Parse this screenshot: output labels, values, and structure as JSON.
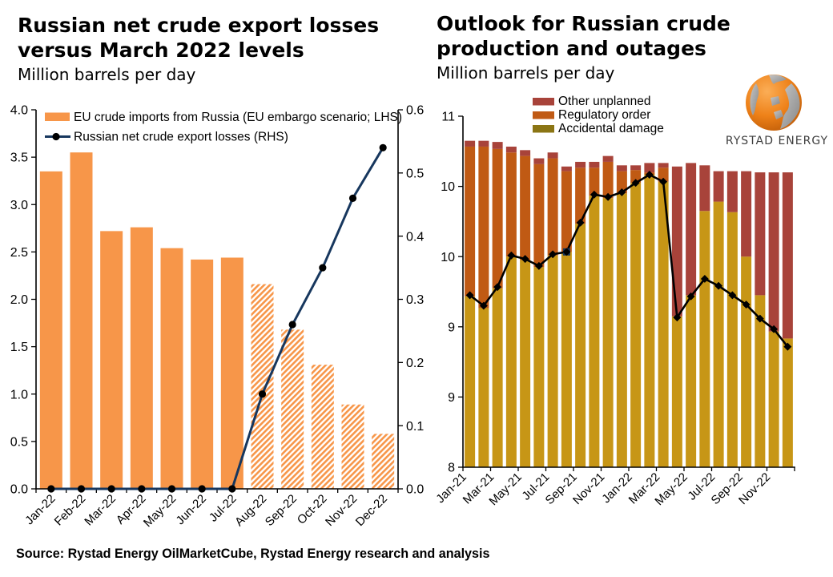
{
  "branding": {
    "logo_text": "RYSTAD ENERGY"
  },
  "footer": {
    "source_note": "Source: Rystad Energy OilMarketCube, Rystad Energy research and analysis"
  },
  "chart_data": [
    {
      "type": "bar+line",
      "title_line1": "Russian net crude export losses",
      "title_line2": "versus March 2022 levels",
      "subtitle": "Million barrels per day",
      "categories": [
        "Jan-22",
        "Feb-22",
        "Mar-22",
        "Apr-22",
        "May-22",
        "Jun-22",
        "Jul-22",
        "Aug-22",
        "Sep-22",
        "Oct-22",
        "Nov-22",
        "Dec-22"
      ],
      "series": [
        {
          "name": "EU crude imports from Russia (EU embargo scenario; LHS)",
          "type": "bar",
          "axis": "LHS",
          "color": "#F79649",
          "values": [
            3.35,
            3.55,
            2.72,
            2.76,
            2.54,
            2.42,
            2.44,
            2.16,
            1.68,
            1.31,
            0.89,
            0.58
          ],
          "hatched_from": "Aug-22"
        },
        {
          "name": "Russian net crude export losses (RHS)",
          "type": "line",
          "axis": "RHS",
          "color": "#17375E",
          "marker_color": "#000000",
          "values": [
            0,
            0,
            0,
            0,
            0,
            0,
            0,
            0.15,
            0.26,
            0.35,
            0.46,
            0.54
          ]
        }
      ],
      "lhs_axis": {
        "min": 0,
        "max": 4.0,
        "tick_step": 0.5,
        "tick_labels": [
          "4.0",
          "3.5",
          "3.0",
          "2.5",
          "2.0",
          "1.5",
          "1.0",
          "0.5",
          "0.0"
        ]
      },
      "rhs_axis": {
        "min": 0,
        "max": 0.6,
        "tick_step": 0.1,
        "tick_labels": [
          "0.6",
          "0.5",
          "0.4",
          "0.3",
          "0.2",
          "0.1",
          "0.0"
        ]
      },
      "legend_position": "top-left-inside",
      "grid": "off"
    },
    {
      "type": "stacked-bar+line",
      "title_line1": "Outlook for Russian crude",
      "title_line2": "production and outages",
      "subtitle": "Million barrels per day",
      "categories": [
        "Jan-21",
        "Feb-21",
        "Mar-21",
        "Apr-21",
        "May-21",
        "Jun-21",
        "Jul-21",
        "Aug-21",
        "Sep-21",
        "Oct-21",
        "Nov-21",
        "Dec-21",
        "Jan-22",
        "Feb-22",
        "Mar-22",
        "Apr-22",
        "May-22",
        "Jun-22",
        "Jul-22",
        "Aug-22",
        "Sep-22",
        "Oct-22",
        "Nov-22",
        "Dec-22"
      ],
      "x_tick_labels": [
        "Jan-21",
        "Mar-21",
        "May-21",
        "Jul-21",
        "Sep-21",
        "Nov-21",
        "Jan-22",
        "Mar-22",
        "May-22",
        "Jul-22",
        "Sep-22",
        "Nov-22"
      ],
      "y_axis": {
        "min": 8,
        "max": 11,
        "tick_values": [
          8,
          8.6,
          9.2,
          9.8,
          10.4,
          11
        ],
        "tick_labels": [
          "8",
          "9",
          "9",
          "10",
          "10",
          "11"
        ]
      },
      "legend": [
        {
          "label": "Other unplanned",
          "color": "#A8433A"
        },
        {
          "label": "Regulatory order",
          "color": "#C05A14"
        },
        {
          "label": "Accidental damage",
          "color": "#8B7514"
        }
      ],
      "production_color": "#C79616",
      "stacks": {
        "production_top": [
          9.46,
          9.36,
          9.53,
          9.8,
          9.77,
          9.71,
          9.81,
          9.84,
          10.08,
          10.32,
          10.3,
          10.34,
          10.43,
          10.5,
          10.44,
          9.29,
          9.47,
          10.19,
          10.27,
          10.18,
          9.8,
          9.47,
          9.16,
          9.1
        ],
        "regulatory_top": [
          10.74,
          10.74,
          10.72,
          10.69,
          10.66,
          10.59,
          10.64,
          10.53,
          10.56,
          10.56,
          10.61,
          10.53,
          10.54,
          10.52,
          10.56,
          9.29,
          9.47,
          10.19,
          10.27,
          10.18,
          9.8,
          9.47,
          9.16,
          9.1
        ],
        "total_top": [
          10.79,
          10.79,
          10.78,
          10.74,
          10.71,
          10.64,
          10.69,
          10.57,
          10.61,
          10.61,
          10.66,
          10.58,
          10.58,
          10.6,
          10.6,
          10.57,
          10.6,
          10.58,
          10.53,
          10.53,
          10.53,
          10.52,
          10.52,
          10.52
        ]
      },
      "line": {
        "values": [
          9.47,
          9.38,
          9.54,
          9.81,
          9.78,
          9.72,
          9.82,
          9.84,
          10.09,
          10.33,
          10.31,
          10.35,
          10.43,
          10.5,
          10.44,
          9.28,
          9.46,
          9.61,
          9.55,
          9.47,
          9.39,
          9.27,
          9.18,
          9.03
        ],
        "color": "#000000",
        "highlight_marker": {
          "category": "Aug-21",
          "index": 7,
          "shape": "square",
          "color": "#17375E"
        }
      },
      "grid": "off"
    }
  ]
}
